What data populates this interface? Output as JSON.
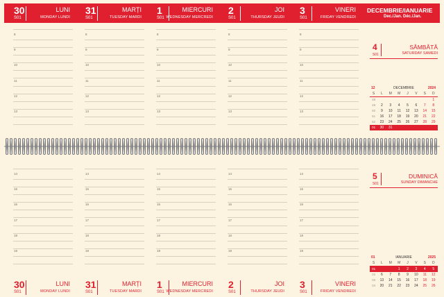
{
  "header": {
    "days": [
      {
        "num": "30",
        "week": "S01",
        "ro": "LUNI",
        "en": "MONDAY  LUNDI"
      },
      {
        "num": "31",
        "week": "S01",
        "ro": "MARȚI",
        "en": "TUESDAY  MARDI"
      },
      {
        "num": "1",
        "week": "S01",
        "ro": "MIERCURI",
        "en": "WEDNESDAY  MERCREDI"
      },
      {
        "num": "2",
        "week": "S01",
        "ro": "JOI",
        "en": "THURSDAY  JEUDI"
      },
      {
        "num": "3",
        "week": "S01",
        "ro": "VINERI",
        "en": "FRIDAY  VENDREDI"
      }
    ],
    "month_ro": "DECEMBRIE/IANUARIE",
    "month_en": "Dec./Jan.  Déc./Jan."
  },
  "hours_top": [
    "8",
    "9",
    "10",
    "11",
    "12",
    "13"
  ],
  "hours_bottom": [
    "14",
    "15",
    "16",
    "17",
    "18",
    "19"
  ],
  "weekend": {
    "saturday": {
      "num": "4",
      "week": "S01",
      "ro": "SÂMBĂTĂ",
      "en": "SATURDAY  SAMEDI"
    },
    "sunday": {
      "num": "5",
      "week": "S01",
      "ro": "DUMINICĂ",
      "en": "SUNDAY  DIMANCHE"
    }
  },
  "mini_dec": {
    "num": "12",
    "name": "DECEMBRIE",
    "year": "2024",
    "dow": [
      "S",
      "L",
      "M",
      "M",
      "J",
      "V",
      "S",
      "D"
    ],
    "rows": [
      [
        "48",
        "",
        "",
        "",
        "",
        "",
        "",
        "1"
      ],
      [
        "49",
        "2",
        "3",
        "4",
        "5",
        "6",
        "7",
        "8"
      ],
      [
        "50",
        "9",
        "10",
        "11",
        "12",
        "13",
        "14",
        "15"
      ],
      [
        "51",
        "16",
        "17",
        "18",
        "19",
        "20",
        "21",
        "22"
      ],
      [
        "52",
        "23",
        "24",
        "25",
        "26",
        "27",
        "28",
        "29"
      ],
      [
        "01",
        "30",
        "31",
        "",
        "",
        "",
        "",
        ""
      ]
    ]
  },
  "mini_jan": {
    "num": "01",
    "name": "IANUARIE",
    "year": "2025",
    "dow": [
      "S",
      "L",
      "M",
      "M",
      "J",
      "V",
      "S",
      "D"
    ],
    "rows": [
      [
        "01",
        "",
        "",
        "1",
        "2",
        "3",
        "4",
        "5"
      ],
      [
        "02",
        "6",
        "7",
        "8",
        "9",
        "10",
        "11",
        "12"
      ],
      [
        "03",
        "13",
        "14",
        "15",
        "16",
        "17",
        "18",
        "19"
      ],
      [
        "04",
        "20",
        "21",
        "22",
        "23",
        "24",
        "25",
        "26"
      ]
    ]
  },
  "colors": {
    "accent": "#e0202f",
    "paper": "#fdf3e1"
  }
}
